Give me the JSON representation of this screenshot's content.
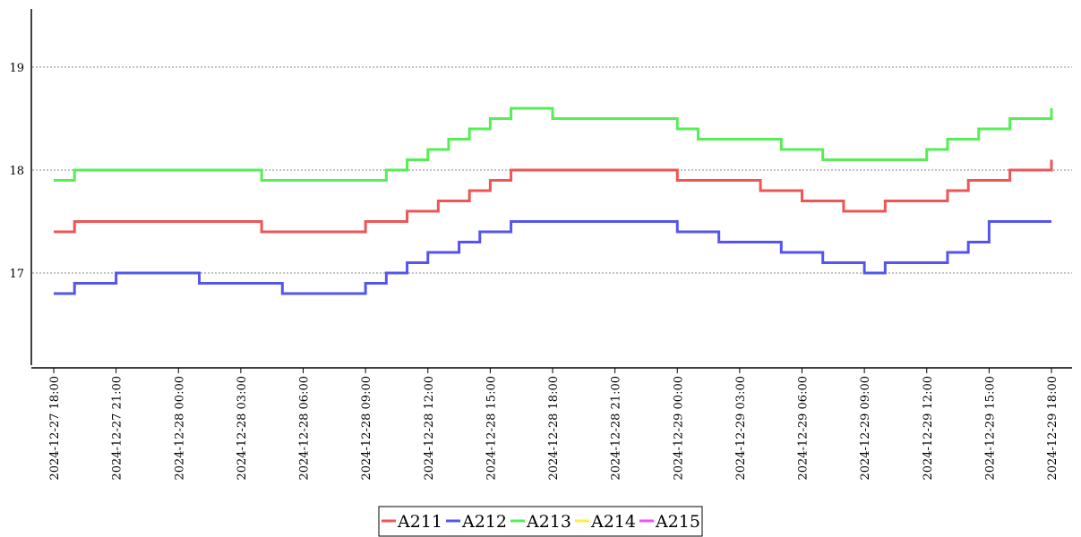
{
  "chart_data": {
    "type": "line",
    "title": "",
    "xlabel": "",
    "ylabel": "",
    "x_ticks": [
      "2024-12-27 18:00",
      "2024-12-27 21:00",
      "2024-12-28 00:00",
      "2024-12-28 03:00",
      "2024-12-28 06:00",
      "2024-12-28 09:00",
      "2024-12-28 12:00",
      "2024-12-28 15:00",
      "2024-12-28 18:00",
      "2024-12-28 21:00",
      "2024-12-29 00:00",
      "2024-12-29 03:00",
      "2024-12-29 06:00",
      "2024-12-29 09:00",
      "2024-12-29 12:00",
      "2024-12-29 15:00",
      "2024-12-29 18:00"
    ],
    "y_ticks": [
      "17",
      "18",
      "19"
    ],
    "y_tick_values": [
      17,
      18,
      19
    ],
    "ylim": [
      16.15,
      19.55
    ],
    "xlim": [
      "2024-12-27 18:00",
      "2024-12-29 18:00"
    ],
    "grid": "horizontal dotted",
    "legend_position": "bottom-center",
    "series": [
      {
        "name": "A211",
        "color": "#ee5555",
        "x": [
          "2024-12-27 18:00",
          "2024-12-27 19:00",
          "2024-12-28 02:00",
          "2024-12-28 04:00",
          "2024-12-28 08:00",
          "2024-12-28 09:00",
          "2024-12-28 10:00",
          "2024-12-28 11:00",
          "2024-12-28 12:30",
          "2024-12-28 14:00",
          "2024-12-28 15:00",
          "2024-12-28 16:00",
          "2024-12-28 18:00",
          "2024-12-28 21:00",
          "2024-12-29 00:00",
          "2024-12-29 02:00",
          "2024-12-29 04:00",
          "2024-12-29 06:00",
          "2024-12-29 08:00",
          "2024-12-29 09:00",
          "2024-12-29 10:00",
          "2024-12-29 11:00",
          "2024-12-29 13:00",
          "2024-12-29 14:00",
          "2024-12-29 16:00",
          "2024-12-29 18:00"
        ],
        "values": [
          17.4,
          17.5,
          17.5,
          17.4,
          17.4,
          17.5,
          17.5,
          17.6,
          17.7,
          17.8,
          17.9,
          18.0,
          18.0,
          18.0,
          17.9,
          17.9,
          17.8,
          17.7,
          17.6,
          17.6,
          17.7,
          17.7,
          17.8,
          17.9,
          18.0,
          18.1
        ]
      },
      {
        "name": "A212",
        "color": "#5555ee",
        "x": [
          "2024-12-27 18:00",
          "2024-12-27 19:00",
          "2024-12-27 21:00",
          "2024-12-28 01:00",
          "2024-12-28 03:00",
          "2024-12-28 05:00",
          "2024-12-28 08:00",
          "2024-12-28 09:00",
          "2024-12-28 10:00",
          "2024-12-28 11:00",
          "2024-12-28 12:00",
          "2024-12-28 13:30",
          "2024-12-28 14:30",
          "2024-12-28 16:00",
          "2024-12-28 18:00",
          "2024-12-28 21:00",
          "2024-12-29 00:00",
          "2024-12-29 02:00",
          "2024-12-29 05:00",
          "2024-12-29 07:00",
          "2024-12-29 08:00",
          "2024-12-29 09:00",
          "2024-12-29 10:00",
          "2024-12-29 12:00",
          "2024-12-29 13:00",
          "2024-12-29 14:00",
          "2024-12-29 15:00",
          "2024-12-29 18:00"
        ],
        "values": [
          16.8,
          16.9,
          17.0,
          16.9,
          16.9,
          16.8,
          16.8,
          16.9,
          17.0,
          17.1,
          17.2,
          17.3,
          17.4,
          17.5,
          17.5,
          17.5,
          17.4,
          17.3,
          17.2,
          17.1,
          17.1,
          17.0,
          17.1,
          17.1,
          17.2,
          17.3,
          17.5,
          17.5
        ]
      },
      {
        "name": "A213",
        "color": "#55ee55",
        "x": [
          "2024-12-27 18:00",
          "2024-12-27 19:00",
          "2024-12-28 02:00",
          "2024-12-28 04:00",
          "2024-12-28 09:00",
          "2024-12-28 10:00",
          "2024-12-28 11:00",
          "2024-12-28 12:00",
          "2024-12-28 13:00",
          "2024-12-28 14:00",
          "2024-12-28 15:00",
          "2024-12-28 16:00",
          "2024-12-28 18:00",
          "2024-12-28 21:00",
          "2024-12-29 00:00",
          "2024-12-29 01:00",
          "2024-12-29 03:00",
          "2024-12-29 05:00",
          "2024-12-29 07:00",
          "2024-12-29 09:00",
          "2024-12-29 10:00",
          "2024-12-29 12:00",
          "2024-12-29 13:00",
          "2024-12-29 14:30",
          "2024-12-29 16:00",
          "2024-12-29 18:00"
        ],
        "values": [
          17.9,
          18.0,
          18.0,
          17.9,
          17.9,
          18.0,
          18.1,
          18.2,
          18.3,
          18.4,
          18.5,
          18.6,
          18.5,
          18.5,
          18.4,
          18.3,
          18.3,
          18.2,
          18.1,
          18.1,
          18.1,
          18.2,
          18.3,
          18.4,
          18.5,
          18.6
        ]
      },
      {
        "name": "A214",
        "color": "#ffee44",
        "x": [],
        "values": []
      },
      {
        "name": "A215",
        "color": "#ee55ee",
        "x": [],
        "values": []
      }
    ]
  }
}
